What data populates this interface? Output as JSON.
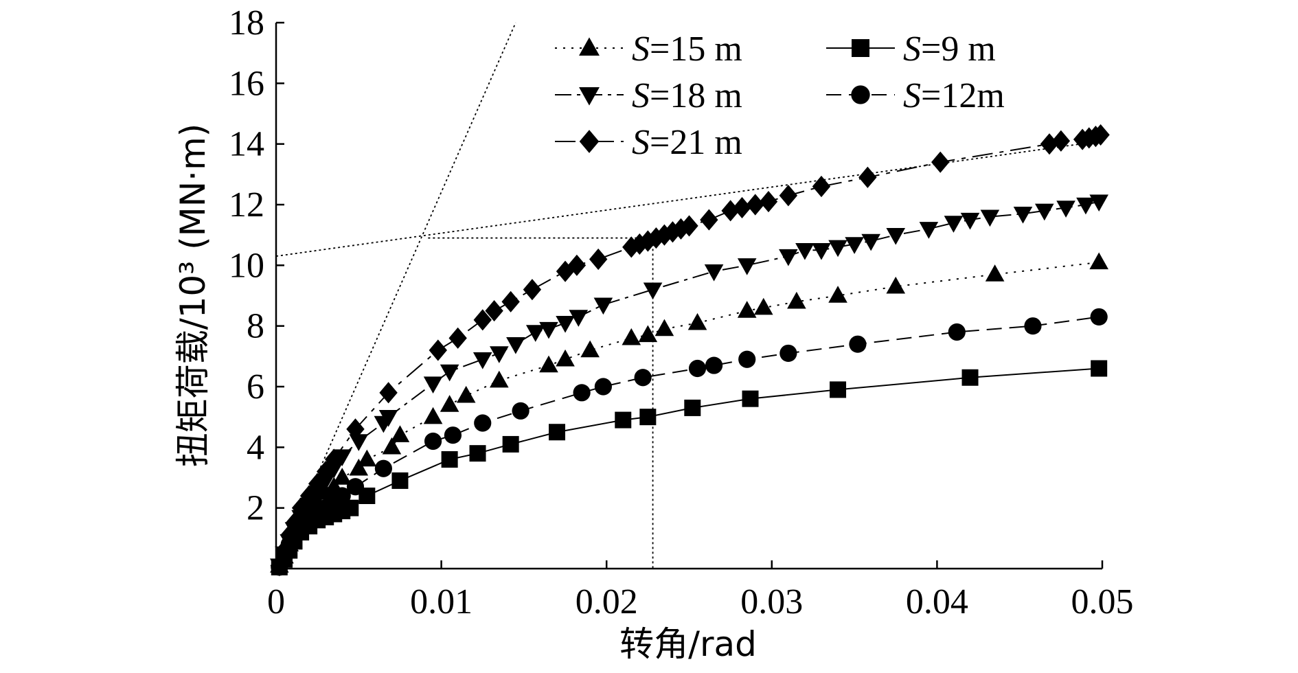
{
  "chart_data": {
    "type": "line",
    "title": "",
    "xlabel": "转角/rad",
    "ylabel": "扭矩荷载/10³ (MN·m)",
    "xlim": [
      0,
      0.05
    ],
    "ylim": [
      0,
      18
    ],
    "x_ticks": [
      0,
      0.01,
      0.02,
      0.03,
      0.04,
      0.05
    ],
    "x_tick_labels": [
      "0",
      "0.01",
      "0.02",
      "0.03",
      "0.04",
      "0.05"
    ],
    "y_ticks": [
      2,
      4,
      6,
      8,
      10,
      12,
      14,
      16,
      18
    ],
    "y_tick_labels": [
      "2",
      "4",
      "6",
      "8",
      "10",
      "12",
      "14",
      "16",
      "18"
    ],
    "grid": false,
    "legend_position": "top-right",
    "series": [
      {
        "name_var": "S",
        "name_rest": "=15 m",
        "marker": "triangle-up",
        "line": "dotted",
        "x": [
          0.0002,
          0.0005,
          0.0008,
          0.0011,
          0.0015,
          0.002,
          0.0025,
          0.003,
          0.0035,
          0.004,
          0.005,
          0.0055,
          0.007,
          0.0075,
          0.0095,
          0.0105,
          0.0115,
          0.0135,
          0.0165,
          0.0175,
          0.019,
          0.0215,
          0.0225,
          0.0235,
          0.0255,
          0.0285,
          0.0295,
          0.0315,
          0.034,
          0.0375,
          0.0435,
          0.0498
        ],
        "y": [
          0.1,
          0.4,
          0.8,
          1.2,
          1.5,
          1.8,
          2.2,
          2.5,
          2.7,
          3.0,
          3.3,
          3.6,
          4.0,
          4.4,
          5.0,
          5.4,
          5.7,
          6.2,
          6.7,
          6.9,
          7.2,
          7.6,
          7.7,
          7.9,
          8.1,
          8.5,
          8.6,
          8.8,
          9.0,
          9.3,
          9.7,
          10.1
        ]
      },
      {
        "name_var": "S",
        "name_rest": "=9 m",
        "marker": "square",
        "line": "solid",
        "x": [
          0.0002,
          0.0005,
          0.0008,
          0.0011,
          0.0015,
          0.002,
          0.0025,
          0.003,
          0.0035,
          0.004,
          0.0045,
          0.0055,
          0.0075,
          0.0105,
          0.0122,
          0.0142,
          0.017,
          0.021,
          0.0225,
          0.0252,
          0.0287,
          0.034,
          0.042,
          0.0498
        ],
        "y": [
          0.05,
          0.3,
          0.6,
          0.9,
          1.2,
          1.4,
          1.6,
          1.7,
          1.8,
          1.9,
          2.0,
          2.4,
          2.9,
          3.6,
          3.8,
          4.1,
          4.5,
          4.9,
          5.0,
          5.3,
          5.6,
          5.9,
          6.3,
          6.6
        ]
      },
      {
        "name_var": "S",
        "name_rest": "=18 m",
        "marker": "triangle-down",
        "line": "dash-dot",
        "x": [
          0.0002,
          0.0005,
          0.0008,
          0.0011,
          0.0015,
          0.002,
          0.0025,
          0.003,
          0.0035,
          0.004,
          0.005,
          0.0065,
          0.0068,
          0.0095,
          0.0105,
          0.0125,
          0.0135,
          0.0145,
          0.0157,
          0.0165,
          0.0175,
          0.0183,
          0.0198,
          0.0228,
          0.0265,
          0.0285,
          0.031,
          0.032,
          0.033,
          0.034,
          0.035,
          0.036,
          0.0375,
          0.0395,
          0.041,
          0.042,
          0.0432,
          0.0452,
          0.0465,
          0.0478,
          0.049,
          0.0498
        ],
        "y": [
          0.1,
          0.5,
          0.9,
          1.3,
          1.7,
          2.1,
          2.5,
          2.9,
          3.3,
          3.7,
          4.2,
          4.8,
          5.0,
          6.1,
          6.5,
          6.9,
          7.1,
          7.4,
          7.8,
          7.9,
          8.1,
          8.3,
          8.7,
          9.2,
          9.8,
          10.0,
          10.3,
          10.5,
          10.5,
          10.6,
          10.7,
          10.8,
          11.0,
          11.2,
          11.4,
          11.5,
          11.6,
          11.7,
          11.8,
          11.9,
          12.0,
          12.1
        ]
      },
      {
        "name_var": "S",
        "name_rest": "=12m",
        "marker": "circle",
        "line": "dashed",
        "x": [
          0.0002,
          0.0005,
          0.0008,
          0.0011,
          0.0015,
          0.002,
          0.0025,
          0.003,
          0.0035,
          0.004,
          0.0048,
          0.0065,
          0.0095,
          0.0107,
          0.0125,
          0.0148,
          0.0185,
          0.0198,
          0.0222,
          0.0255,
          0.0265,
          0.0285,
          0.031,
          0.0352,
          0.0412,
          0.0458,
          0.0498
        ],
        "y": [
          0.05,
          0.4,
          0.8,
          1.1,
          1.4,
          1.6,
          1.8,
          2.0,
          2.2,
          2.4,
          2.7,
          3.3,
          4.2,
          4.4,
          4.8,
          5.2,
          5.8,
          6.0,
          6.3,
          6.6,
          6.7,
          6.9,
          7.1,
          7.4,
          7.8,
          8.0,
          8.3
        ]
      },
      {
        "name_var": "S",
        "name_rest": "=21 m",
        "marker": "diamond",
        "line": "long-dash",
        "x": [
          0.0002,
          0.0005,
          0.0008,
          0.0011,
          0.0015,
          0.002,
          0.0025,
          0.003,
          0.0035,
          0.0048,
          0.0068,
          0.0098,
          0.011,
          0.0125,
          0.0132,
          0.0142,
          0.0155,
          0.0175,
          0.0182,
          0.0195,
          0.0215,
          0.022,
          0.0225,
          0.023,
          0.0235,
          0.024,
          0.0245,
          0.025,
          0.0262,
          0.0275,
          0.0282,
          0.029,
          0.0298,
          0.031,
          0.033,
          0.0358,
          0.0402,
          0.0468,
          0.0475,
          0.0488,
          0.0492,
          0.0496,
          0.0499
        ],
        "y": [
          0.1,
          0.6,
          1.1,
          1.5,
          2.0,
          2.4,
          2.8,
          3.2,
          3.6,
          4.6,
          5.8,
          7.2,
          7.6,
          8.2,
          8.5,
          8.8,
          9.2,
          9.8,
          10.0,
          10.2,
          10.6,
          10.7,
          10.8,
          10.9,
          11.0,
          11.1,
          11.2,
          11.3,
          11.5,
          11.8,
          11.9,
          12.0,
          12.1,
          12.3,
          12.6,
          12.9,
          13.4,
          14.0,
          14.1,
          14.15,
          14.2,
          14.25,
          14.3
        ]
      }
    ],
    "reference_lines": [
      {
        "kind": "initial-tangent",
        "x": [
          0,
          0.0145
        ],
        "y": [
          0,
          18
        ]
      },
      {
        "kind": "post-yield-asymptote",
        "x": [
          0,
          0.05
        ],
        "y": [
          10.3,
          14.1
        ]
      },
      {
        "kind": "yield-point-guide",
        "x": [
          0.0092,
          0.0228,
          0.0228
        ],
        "y": [
          10.9,
          10.9,
          0
        ]
      }
    ]
  }
}
